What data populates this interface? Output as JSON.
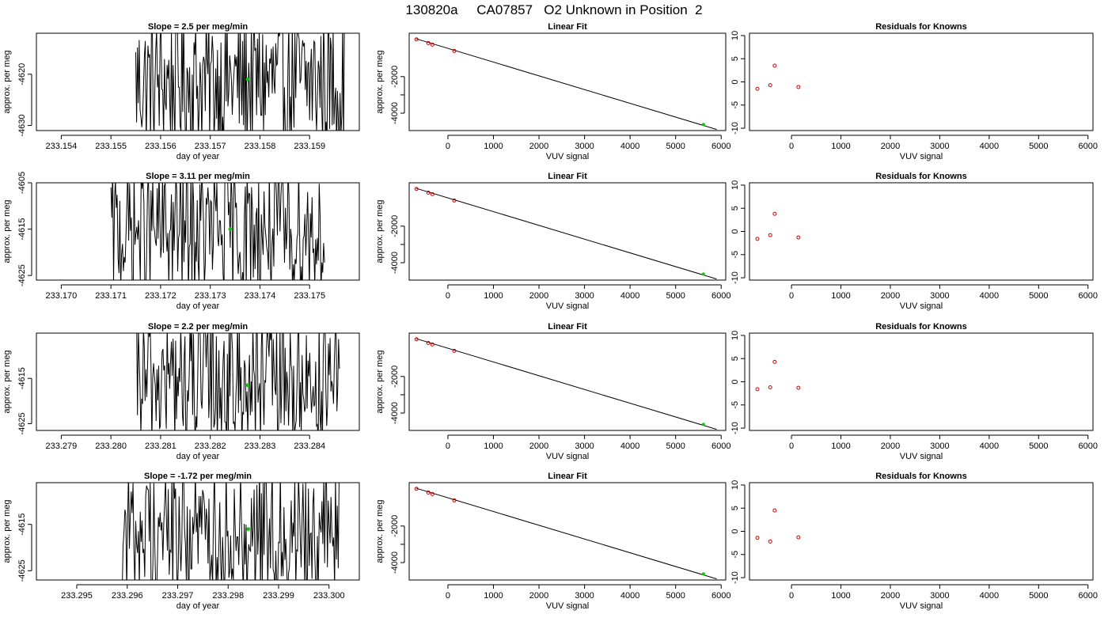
{
  "figure": {
    "title": "130820a     CA07857   O2 Unknown in Position  2",
    "colors": {
      "line": "#000000",
      "known_point": "#cc0000",
      "unknown_point": "#00cc00"
    }
  },
  "chart_data": [
    {
      "row": 1,
      "col": 1,
      "type": "line",
      "title": "Slope =  2.5  per meg/min",
      "xlabel": "day of year",
      "ylabel": "approx. per meg",
      "xlim": [
        233.1535,
        233.16
      ],
      "ylim": [
        -4631,
        -4612
      ],
      "x_ticks": [
        233.154,
        233.155,
        233.156,
        233.157,
        233.158,
        233.159
      ],
      "x_tick_labels": [
        "233.154",
        "233.155",
        "233.156",
        "233.157",
        "233.158",
        "233.159"
      ],
      "y_ticks": [
        -4630,
        -4620
      ],
      "y_tick_labels": [
        "-4630",
        "-4620"
      ],
      "series_range": [
        233.1555,
        233.1597
      ],
      "points": [
        {
          "x": 233.15775,
          "y": -4621,
          "color": "#00cc00"
        }
      ]
    },
    {
      "row": 1,
      "col": 2,
      "type": "scatter",
      "title": "Linear Fit",
      "xlabel": "VUV signal",
      "ylabel": "approx. per meg",
      "xlim": [
        -850,
        6100
      ],
      "ylim": [
        -4950,
        370
      ],
      "x_ticks": [
        0,
        1000,
        2000,
        3000,
        4000,
        5000,
        6000
      ],
      "x_tick_labels": [
        "0",
        "1000",
        "2000",
        "3000",
        "4000",
        "5000",
        "6000"
      ],
      "y_ticks": [
        -4000,
        -3000,
        -2000
      ],
      "y_tick_labels": [
        "-4000",
        "",
        "-2000"
      ],
      "fit_line": {
        "x": [
          -700,
          5900
        ],
        "y": [
          70,
          -4890
        ]
      },
      "knowns": [
        [
          -690,
          35
        ],
        [
          -430,
          -170
        ],
        [
          -340,
          -250
        ],
        [
          140,
          -600
        ]
      ],
      "unknown": [
        [
          5610,
          -4620
        ]
      ]
    },
    {
      "row": 1,
      "col": 3,
      "type": "scatter",
      "title": "Residuals for Knowns",
      "xlabel": "VUV signal",
      "ylabel": "",
      "xlim": [
        -850,
        6100
      ],
      "ylim": [
        -10.5,
        10.5
      ],
      "x_ticks": [
        0,
        1000,
        2000,
        3000,
        4000,
        5000,
        6000
      ],
      "x_tick_labels": [
        "0",
        "1000",
        "2000",
        "3000",
        "4000",
        "5000",
        "6000"
      ],
      "y_ticks": [
        -10,
        -5,
        0,
        5,
        10
      ],
      "y_tick_labels": [
        "-10",
        "-5",
        "0",
        "5",
        "10"
      ],
      "points": [
        [
          -690,
          -1.5
        ],
        [
          -430,
          -0.7
        ],
        [
          -340,
          3.5
        ],
        [
          140,
          -1.1
        ]
      ]
    },
    {
      "row": 2,
      "col": 1,
      "type": "line",
      "title": "Slope =  3.11  per meg/min",
      "xlabel": "day of year",
      "ylabel": "approx. per meg",
      "xlim": [
        233.1695,
        233.176
      ],
      "ylim": [
        -4626,
        -4605
      ],
      "x_ticks": [
        233.17,
        233.171,
        233.172,
        233.173,
        233.174,
        233.175
      ],
      "x_tick_labels": [
        "233.170",
        "233.171",
        "233.172",
        "233.173",
        "233.174",
        "233.175"
      ],
      "y_ticks": [
        -4625,
        -4615,
        -4605
      ],
      "y_tick_labels": [
        "-4625",
        "-4615",
        "-4605"
      ],
      "series_range": [
        233.171,
        233.1753
      ],
      "points": [
        {
          "x": 233.1734,
          "y": -4615,
          "color": "#00cc00"
        }
      ]
    },
    {
      "row": 2,
      "col": 2,
      "type": "scatter",
      "title": "Linear Fit",
      "xlabel": "VUV signal",
      "ylabel": "approx. per meg",
      "xlim": [
        -850,
        6100
      ],
      "ylim": [
        -4950,
        370
      ],
      "x_ticks": [
        0,
        1000,
        2000,
        3000,
        4000,
        5000,
        6000
      ],
      "x_tick_labels": [
        "0",
        "1000",
        "2000",
        "3000",
        "4000",
        "5000",
        "6000"
      ],
      "y_ticks": [
        -4000,
        -3000,
        -2000
      ],
      "y_tick_labels": [
        "-4000",
        "",
        "-2000"
      ],
      "fit_line": {
        "x": [
          -700,
          5900
        ],
        "y": [
          70,
          -4890
        ]
      },
      "knowns": [
        [
          -690,
          35
        ],
        [
          -430,
          -170
        ],
        [
          -340,
          -250
        ],
        [
          140,
          -600
        ]
      ],
      "unknown": [
        [
          5610,
          -4620
        ]
      ]
    },
    {
      "row": 2,
      "col": 3,
      "type": "scatter",
      "title": "Residuals for Knowns",
      "xlabel": "VUV signal",
      "ylabel": "",
      "xlim": [
        -850,
        6100
      ],
      "ylim": [
        -10.5,
        10.5
      ],
      "x_ticks": [
        0,
        1000,
        2000,
        3000,
        4000,
        5000,
        6000
      ],
      "x_tick_labels": [
        "0",
        "1000",
        "2000",
        "3000",
        "4000",
        "5000",
        "6000"
      ],
      "y_ticks": [
        -10,
        -5,
        0,
        5,
        10
      ],
      "y_tick_labels": [
        "-10",
        "-5",
        "0",
        "5",
        "10"
      ],
      "points": [
        [
          -690,
          -1.6
        ],
        [
          -430,
          -0.8
        ],
        [
          -340,
          3.8
        ],
        [
          140,
          -1.3
        ]
      ]
    },
    {
      "row": 3,
      "col": 1,
      "type": "line",
      "title": "Slope =  2.2  per meg/min",
      "xlabel": "day of year",
      "ylabel": "approx. per meg",
      "xlim": [
        233.2785,
        233.285
      ],
      "ylim": [
        -4626.5,
        -4605
      ],
      "x_ticks": [
        233.279,
        233.28,
        233.281,
        233.282,
        233.283,
        233.284
      ],
      "x_tick_labels": [
        "233.279",
        "233.280",
        "233.281",
        "233.282",
        "233.283",
        "233.284"
      ],
      "y_ticks": [
        -4625,
        -4615
      ],
      "y_tick_labels": [
        "-4625",
        "-4615"
      ],
      "series_range": [
        233.2805,
        233.2846
      ],
      "points": [
        {
          "x": 233.28275,
          "y": -4616.5,
          "color": "#00cc00"
        }
      ]
    },
    {
      "row": 3,
      "col": 2,
      "type": "scatter",
      "title": "Linear Fit",
      "xlabel": "VUV signal",
      "ylabel": "approx. per meg",
      "xlim": [
        -850,
        6100
      ],
      "ylim": [
        -4950,
        370
      ],
      "x_ticks": [
        0,
        1000,
        2000,
        3000,
        4000,
        5000,
        6000
      ],
      "x_tick_labels": [
        "0",
        "1000",
        "2000",
        "3000",
        "4000",
        "5000",
        "6000"
      ],
      "y_ticks": [
        -4000,
        -3000,
        -2000
      ],
      "y_tick_labels": [
        "-4000",
        "",
        "-2000"
      ],
      "fit_line": {
        "x": [
          -700,
          5900
        ],
        "y": [
          70,
          -4890
        ]
      },
      "knowns": [
        [
          -690,
          35
        ],
        [
          -430,
          -170
        ],
        [
          -340,
          -250
        ],
        [
          140,
          -600
        ]
      ],
      "unknown": [
        [
          5610,
          -4620
        ]
      ]
    },
    {
      "row": 3,
      "col": 3,
      "type": "scatter",
      "title": "Residuals for Knowns",
      "xlabel": "VUV signal",
      "ylabel": "",
      "xlim": [
        -850,
        6100
      ],
      "ylim": [
        -10.5,
        10.5
      ],
      "x_ticks": [
        0,
        1000,
        2000,
        3000,
        4000,
        5000,
        6000
      ],
      "x_tick_labels": [
        "0",
        "1000",
        "2000",
        "3000",
        "4000",
        "5000",
        "6000"
      ],
      "y_ticks": [
        -10,
        -5,
        0,
        5,
        10
      ],
      "y_tick_labels": [
        "-10",
        "-5",
        "0",
        "5",
        "10"
      ],
      "points": [
        [
          -690,
          -1.6
        ],
        [
          -430,
          -1.2
        ],
        [
          -340,
          4.3
        ],
        [
          140,
          -1.3
        ]
      ]
    },
    {
      "row": 4,
      "col": 1,
      "type": "line",
      "title": "Slope =  -1.72  per meg/min",
      "xlabel": "day of year",
      "ylabel": "approx. per meg",
      "xlim": [
        233.2942,
        233.3006
      ],
      "ylim": [
        -4627,
        -4606
      ],
      "x_ticks": [
        233.295,
        233.296,
        233.297,
        233.298,
        233.299,
        233.3
      ],
      "x_tick_labels": [
        "233.295",
        "233.296",
        "233.297",
        "233.298",
        "233.299",
        "233.300"
      ],
      "y_ticks": [
        -4625,
        -4615
      ],
      "y_tick_labels": [
        "-4625",
        "-4615"
      ],
      "series_range": [
        233.2959,
        233.3002
      ],
      "points": [
        {
          "x": 233.2984,
          "y": -4616,
          "color": "#00cc00"
        }
      ]
    },
    {
      "row": 4,
      "col": 2,
      "type": "scatter",
      "title": "Linear Fit",
      "xlabel": "VUV signal",
      "ylabel": "approx. per meg",
      "xlim": [
        -850,
        6100
      ],
      "ylim": [
        -4950,
        370
      ],
      "x_ticks": [
        0,
        1000,
        2000,
        3000,
        4000,
        5000,
        6000
      ],
      "x_tick_labels": [
        "0",
        "1000",
        "2000",
        "3000",
        "4000",
        "5000",
        "6000"
      ],
      "y_ticks": [
        -4000,
        -3000,
        -2000
      ],
      "y_tick_labels": [
        "-4000",
        "",
        "-2000"
      ],
      "fit_line": {
        "x": [
          -700,
          5900
        ],
        "y": [
          70,
          -4890
        ]
      },
      "knowns": [
        [
          -690,
          35
        ],
        [
          -430,
          -170
        ],
        [
          -340,
          -250
        ],
        [
          140,
          -600
        ]
      ],
      "unknown": [
        [
          5610,
          -4620
        ]
      ]
    },
    {
      "row": 4,
      "col": 3,
      "type": "scatter",
      "title": "Residuals for Knowns",
      "xlabel": "VUV signal",
      "ylabel": "",
      "xlim": [
        -850,
        6100
      ],
      "ylim": [
        -10.5,
        10.5
      ],
      "x_ticks": [
        0,
        1000,
        2000,
        3000,
        4000,
        5000,
        6000
      ],
      "x_tick_labels": [
        "0",
        "1000",
        "2000",
        "3000",
        "4000",
        "5000",
        "6000"
      ],
      "y_ticks": [
        -10,
        -5,
        0,
        5,
        10
      ],
      "y_tick_labels": [
        "-10",
        "-5",
        "0",
        "5",
        "10"
      ],
      "points": [
        [
          -690,
          -1.4
        ],
        [
          -430,
          -2.2
        ],
        [
          -340,
          4.5
        ],
        [
          140,
          -1.3
        ]
      ]
    }
  ]
}
